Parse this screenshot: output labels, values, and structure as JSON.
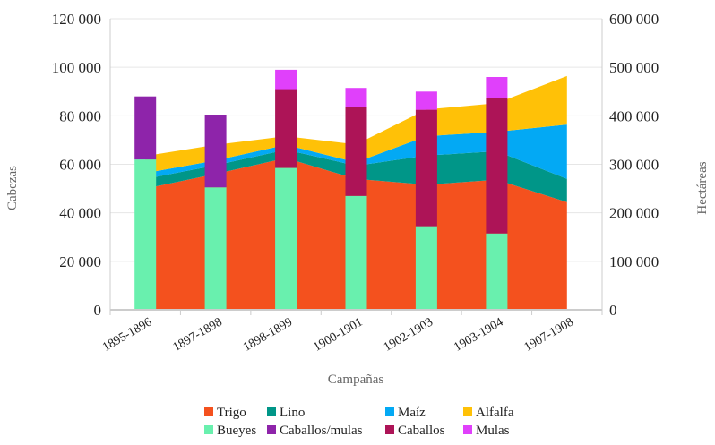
{
  "chart_data": {
    "type": "area+bar",
    "title": "",
    "xlabel": "Campañas",
    "ylabel_left": "Cabezas",
    "ylabel_right": "Hectáreas",
    "ylim_left": [
      0,
      120000
    ],
    "ylim_right": [
      0,
      600000
    ],
    "yticks_left": [
      "0",
      "20 000",
      "40 000",
      "60 000",
      "80 000",
      "100 000",
      "120 000"
    ],
    "yticks_right": [
      "0",
      "100 000",
      "200 000",
      "300 000",
      "400 000",
      "500 000",
      "600 000"
    ],
    "categories": [
      "1895-1896",
      "1897-1898",
      "1898-1899",
      "1900-1901",
      "1902-1903",
      "1903-1904",
      "1907-1908"
    ],
    "area_series": [
      {
        "name": "Trigo",
        "color": "#f4511e",
        "axis": "right",
        "values": [
          250000,
          280000,
          313000,
          270000,
          258000,
          268000,
          222000
        ]
      },
      {
        "name": "Lino",
        "color": "#009688",
        "axis": "right",
        "values": [
          20000,
          18000,
          17000,
          27000,
          60000,
          59000,
          48000
        ]
      },
      {
        "name": "Maíz",
        "color": "#03a9f4",
        "axis": "right",
        "values": [
          12000,
          10000,
          10000,
          7000,
          40000,
          40000,
          112000
        ]
      },
      {
        "name": "Alfalfa",
        "color": "#ffc107",
        "axis": "right",
        "values": [
          35000,
          32000,
          18000,
          37000,
          55000,
          59000,
          100000
        ]
      }
    ],
    "bar_series": [
      {
        "name": "Bueyes",
        "color": "#69f0ae",
        "axis": "left",
        "values": [
          62000,
          50500,
          58500,
          47000,
          34500,
          31500,
          null
        ]
      },
      {
        "name": "Caballos/mulas",
        "color": "#8e24aa",
        "axis": "left",
        "values": [
          26000,
          30000,
          null,
          null,
          null,
          null,
          null
        ]
      },
      {
        "name": "Caballos",
        "color": "#ad1457",
        "axis": "left",
        "values": [
          null,
          null,
          32500,
          36500,
          48000,
          56000,
          null
        ]
      },
      {
        "name": "Mulas",
        "color": "#e040fb",
        "axis": "left",
        "values": [
          null,
          null,
          8000,
          8000,
          7500,
          8500,
          null
        ]
      }
    ],
    "legend": {
      "position": "bottom",
      "items": [
        "Trigo",
        "Lino",
        "Maíz",
        "Alfalfa",
        "Bueyes",
        "Caballos/mulas",
        "Caballos",
        "Mulas"
      ]
    },
    "grid": true
  }
}
